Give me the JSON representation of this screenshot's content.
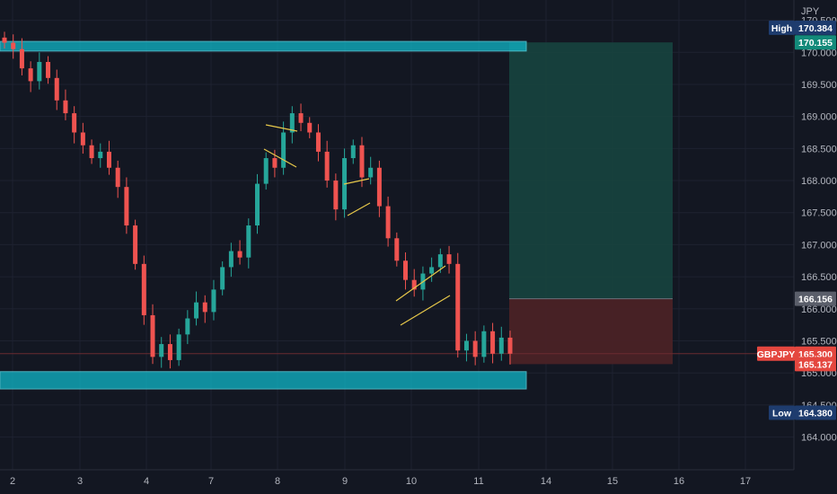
{
  "chart_data": {
    "type": "candlestick",
    "symbol": "GBPJPY",
    "currency": "JPY",
    "y_axis_ticks": [
      "170.500",
      "170.000",
      "169.500",
      "169.000",
      "168.500",
      "168.000",
      "167.500",
      "167.000",
      "166.500",
      "166.000",
      "165.500",
      "165.000",
      "164.500",
      "164.000"
    ],
    "y_axis_tick_values": [
      170.5,
      170.0,
      169.5,
      169.0,
      168.5,
      168.0,
      167.5,
      167.0,
      166.5,
      166.0,
      165.5,
      165.0,
      164.5,
      164.0
    ],
    "ylim": [
      163.7,
      170.62
    ],
    "x_axis_ticks": [
      "2",
      "3",
      "4",
      "7",
      "8",
      "9",
      "10",
      "11",
      "14",
      "15",
      "16",
      "17"
    ],
    "price_labels": {
      "high_label": "High",
      "high_value": "170.384",
      "target_value": "170.155",
      "stop_value": "166.156",
      "symbol_label": "GBPJPY",
      "last_value": "165.300",
      "entry_value": "165.137",
      "low_label": "Low",
      "low_value": "164.380"
    },
    "price_levels": {
      "high": 170.384,
      "target": 170.155,
      "stop": 166.156,
      "last": 165.3,
      "entry": 165.137,
      "low": 164.38
    },
    "zones": [
      {
        "name": "resistance-zone",
        "from": 170.02,
        "to": 170.17
      },
      {
        "name": "support-zone",
        "from": 164.75,
        "to": 165.02
      }
    ],
    "position": {
      "direction": "long",
      "entry": 165.137,
      "target": 170.155,
      "stop": 166.156
    },
    "closes": [
      170.15,
      170.05,
      169.75,
      169.55,
      169.85,
      169.6,
      169.25,
      169.05,
      168.75,
      168.55,
      168.35,
      168.45,
      168.2,
      167.9,
      167.3,
      166.7,
      165.9,
      165.25,
      165.45,
      165.2,
      165.6,
      165.85,
      166.1,
      165.95,
      166.3,
      166.65,
      166.9,
      166.8,
      167.3,
      167.95,
      168.35,
      168.2,
      168.75,
      169.05,
      168.9,
      168.75,
      168.45,
      168.0,
      167.55,
      168.35,
      168.55,
      168.05,
      168.2,
      167.6,
      167.1,
      166.75,
      166.45,
      166.3,
      166.55,
      166.65,
      166.85,
      166.7,
      165.35,
      165.5,
      165.25,
      165.65,
      165.3,
      165.55,
      165.3
    ],
    "colors": {
      "background": "#131722",
      "up": "#26a69a",
      "down": "#ef5350",
      "zone": "#0fb6c8",
      "profit": "#17443f",
      "loss": "#4a2226",
      "pattern": "#e7c84a",
      "axis_text": "#b2b5be",
      "high_badge": "#1e3c6e",
      "target_badge": "#138a7a",
      "stop_badge": "#5a5e6a",
      "symbol_badge": "#e4473f"
    }
  }
}
